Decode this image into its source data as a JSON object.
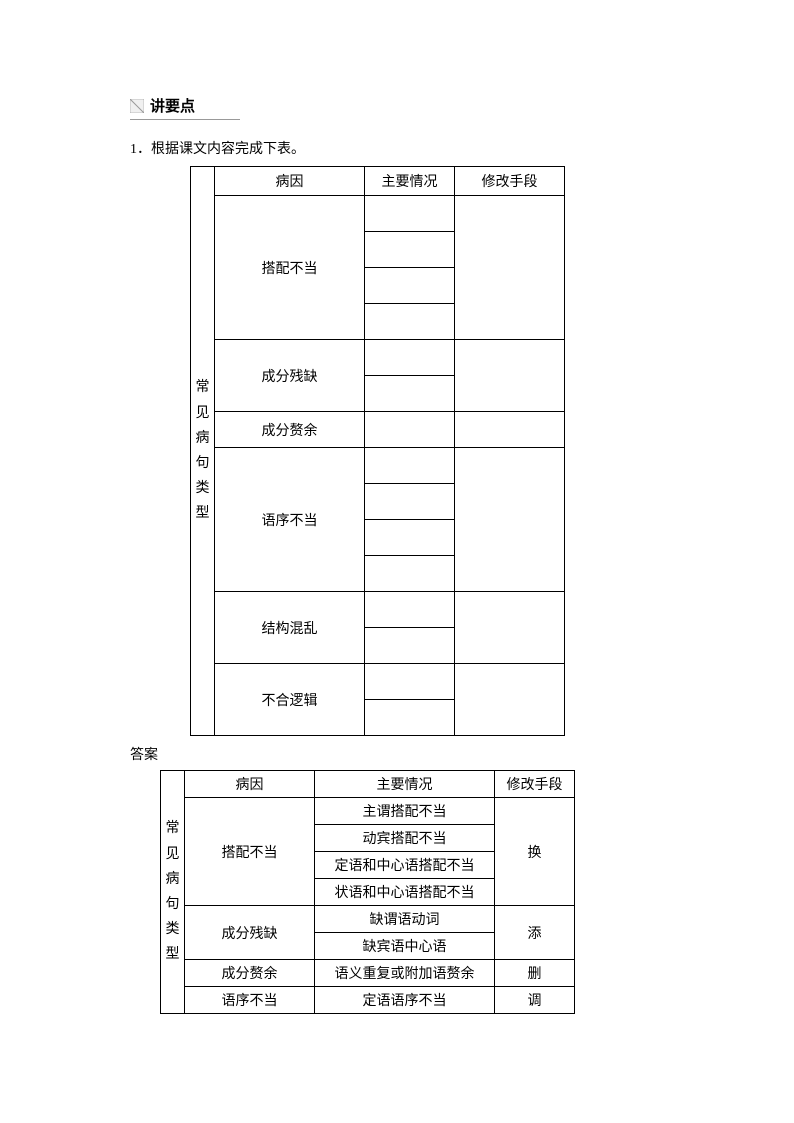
{
  "heading": "讲要点",
  "instruction": "1．根据课文内容完成下表。",
  "table1": {
    "vertical_label": "常见病句类型",
    "headers": {
      "cause": "病因",
      "situation": "主要情况",
      "method": "修改手段"
    },
    "rows": [
      {
        "cause": "搭配不当",
        "situation_count": 4,
        "method": ""
      },
      {
        "cause": "成分残缺",
        "situation_count": 2,
        "method": ""
      },
      {
        "cause": "成分赘余",
        "situation_count": 1,
        "method": ""
      },
      {
        "cause": "语序不当",
        "situation_count": 4,
        "method": ""
      },
      {
        "cause": "结构混乱",
        "situation_count": 2,
        "method": ""
      },
      {
        "cause": "不合逻辑",
        "situation_count": 2,
        "method": ""
      }
    ]
  },
  "answer_label": "答案",
  "table2": {
    "vertical_label": "常见病句类型",
    "headers": {
      "cause": "病因",
      "situation": "主要情况",
      "method": "修改手段"
    },
    "rows": [
      {
        "cause": "搭配不当",
        "situations": [
          "主谓搭配不当",
          "动宾搭配不当",
          "定语和中心语搭配不当",
          "状语和中心语搭配不当"
        ],
        "method": "换"
      },
      {
        "cause": "成分残缺",
        "situations": [
          "缺谓语动词",
          "缺宾语中心语"
        ],
        "method": "添"
      },
      {
        "cause": "成分赘余",
        "situations": [
          "语义重复或附加语赘余"
        ],
        "method": "删"
      },
      {
        "cause": "语序不当",
        "situations": [
          "定语语序不当"
        ],
        "method": "调"
      }
    ]
  }
}
